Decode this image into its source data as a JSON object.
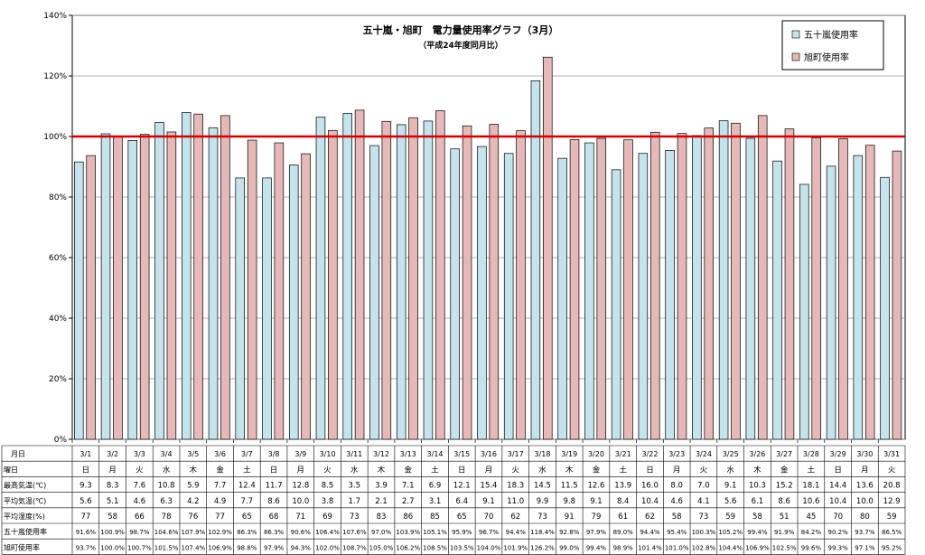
{
  "chart_data": {
    "type": "bar",
    "title": "五十嵐・旭町　電力量使用率グラフ（3月）",
    "subtitle": "（平成24年度同月比）",
    "ylim": [
      0,
      140
    ],
    "yticks": [
      0,
      20,
      40,
      60,
      80,
      100,
      120,
      140
    ],
    "yticklabels": [
      "0%",
      "20%",
      "40%",
      "60%",
      "80%",
      "100%",
      "120%",
      "140%"
    ],
    "reference_line": 100,
    "reference_color": "#cc0000",
    "grid": true,
    "legend_position": "top-right",
    "categories": [
      "3/1",
      "3/2",
      "3/3",
      "3/4",
      "3/5",
      "3/6",
      "3/7",
      "3/8",
      "3/9",
      "3/10",
      "3/11",
      "3/12",
      "3/13",
      "3/14",
      "3/15",
      "3/16",
      "3/17",
      "3/18",
      "3/19",
      "3/20",
      "3/21",
      "3/22",
      "3/23",
      "3/24",
      "3/25",
      "3/26",
      "3/27",
      "3/28",
      "3/29",
      "3/30",
      "3/31"
    ],
    "series": [
      {
        "name": "五十嵐使用率",
        "color": "#c5e3ec",
        "values": [
          91.6,
          100.9,
          98.7,
          104.6,
          107.9,
          102.9,
          86.3,
          86.3,
          90.6,
          106.4,
          107.6,
          97.0,
          103.9,
          105.1,
          95.9,
          96.7,
          94.4,
          118.4,
          92.8,
          97.9,
          89.0,
          94.4,
          95.4,
          100.3,
          105.2,
          99.4,
          91.9,
          84.2,
          90.2,
          93.7,
          86.5
        ]
      },
      {
        "name": "旭町使用率",
        "color": "#e6b9b8",
        "values": [
          93.7,
          100.0,
          100.7,
          101.5,
          107.4,
          106.9,
          98.8,
          97.9,
          94.3,
          102.0,
          108.7,
          105.0,
          106.2,
          108.5,
          103.5,
          104.0,
          101.9,
          126.2,
          99.0,
          99.4,
          98.9,
          101.4,
          101.0,
          102.8,
          104.4,
          106.9,
          102.5,
          99.6,
          99.3,
          97.1,
          95.2
        ]
      }
    ],
    "table": {
      "header_date": "月日",
      "rows": [
        {
          "label": "曜日",
          "values": [
            "日",
            "月",
            "火",
            "水",
            "木",
            "金",
            "土",
            "日",
            "月",
            "火",
            "水",
            "木",
            "金",
            "土",
            "日",
            "月",
            "火",
            "水",
            "木",
            "金",
            "土",
            "日",
            "月",
            "火",
            "水",
            "木",
            "金",
            "土",
            "日",
            "月",
            "火"
          ]
        },
        {
          "label": "最高気温(℃)",
          "values": [
            "9.3",
            "8.3",
            "7.6",
            "10.8",
            "5.9",
            "7.7",
            "12.4",
            "11.7",
            "12.8",
            "8.5",
            "3.5",
            "3.9",
            "7.1",
            "6.9",
            "12.1",
            "15.4",
            "18.3",
            "14.5",
            "11.5",
            "12.6",
            "13.9",
            "16.0",
            "8.0",
            "7.0",
            "9.1",
            "10.3",
            "15.2",
            "18.1",
            "14.4",
            "13.6",
            "20.8"
          ]
        },
        {
          "label": "平均気温(℃)",
          "values": [
            "5.6",
            "5.1",
            "4.6",
            "6.3",
            "4.2",
            "4.9",
            "7.7",
            "8.6",
            "10.0",
            "3.8",
            "1.7",
            "2.1",
            "2.7",
            "3.1",
            "6.4",
            "9.1",
            "11.0",
            "9.9",
            "9.8",
            "9.1",
            "8.4",
            "10.4",
            "4.6",
            "4.1",
            "5.6",
            "6.1",
            "8.6",
            "10.6",
            "10.4",
            "10.0",
            "12.9"
          ]
        },
        {
          "label": "平均湿度(%)",
          "values": [
            "77",
            "58",
            "66",
            "78",
            "76",
            "77",
            "65",
            "68",
            "71",
            "69",
            "73",
            "83",
            "86",
            "85",
            "65",
            "70",
            "62",
            "73",
            "91",
            "79",
            "61",
            "62",
            "58",
            "73",
            "59",
            "58",
            "51",
            "45",
            "70",
            "80",
            "59"
          ]
        },
        {
          "label": "五十嵐使用率",
          "values": [
            "91.6%",
            "100.9%",
            "98.7%",
            "104.6%",
            "107.9%",
            "102.9%",
            "86.3%",
            "86.3%",
            "90.6%",
            "106.4%",
            "107.6%",
            "97.0%",
            "103.9%",
            "105.1%",
            "95.9%",
            "96.7%",
            "94.4%",
            "118.4%",
            "92.8%",
            "97.9%",
            "89.0%",
            "94.4%",
            "95.4%",
            "100.3%",
            "105.2%",
            "99.4%",
            "91.9%",
            "84.2%",
            "90.2%",
            "93.7%",
            "86.5%"
          ]
        },
        {
          "label": "旭町使用率",
          "values": [
            "93.7%",
            "100.0%",
            "100.7%",
            "101.5%",
            "107.4%",
            "106.9%",
            "98.8%",
            "97.9%",
            "94.3%",
            "102.0%",
            "108.7%",
            "105.0%",
            "106.2%",
            "108.5%",
            "103.5%",
            "104.0%",
            "101.9%",
            "126.2%",
            "99.0%",
            "99.4%",
            "98.9%",
            "101.4%",
            "101.0%",
            "102.8%",
            "104.4%",
            "106.9%",
            "102.5%",
            "99.6%",
            "99.3%",
            "97.1%",
            "95.2%"
          ]
        }
      ]
    }
  }
}
